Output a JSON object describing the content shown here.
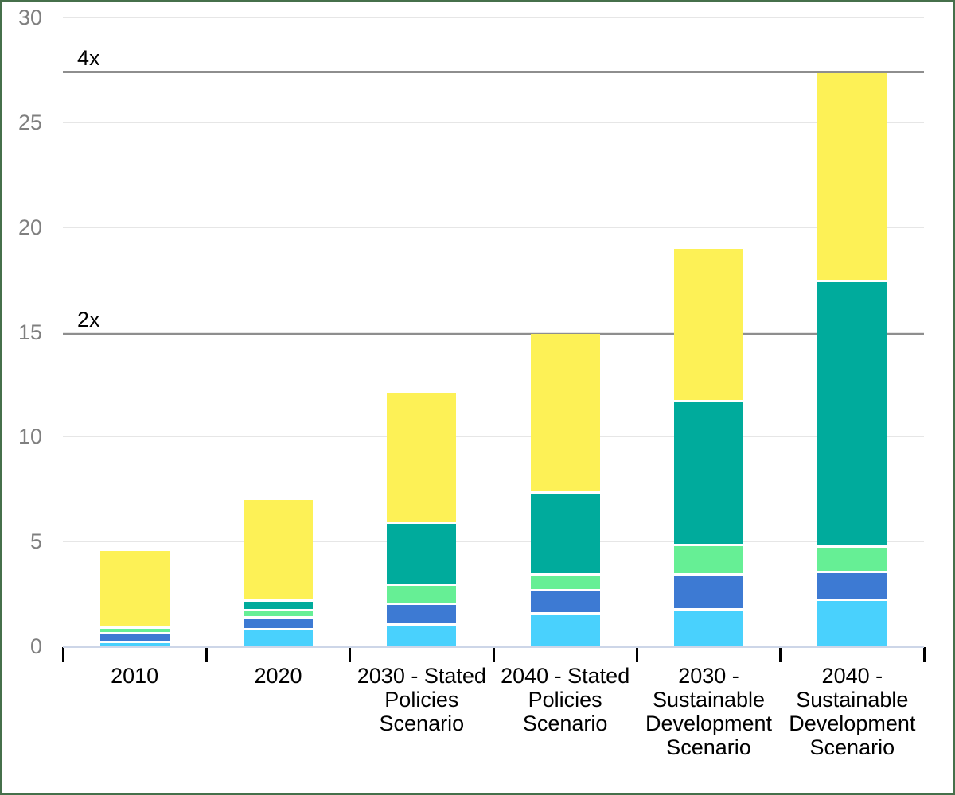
{
  "frame": {
    "border_color": "#46704b",
    "background": "#ffffff"
  },
  "y_axis": {
    "tick_labels": [
      "0",
      "5",
      "10",
      "15",
      "20",
      "25",
      "30"
    ],
    "tick_values": [
      0,
      5,
      10,
      15,
      20,
      25,
      30
    ],
    "label_color": "#7f7f7f",
    "gridline_color": "#e6e6e6",
    "baseline_color": "#cdd6e8"
  },
  "reference_lines": [
    {
      "label": "2x",
      "value": 14.9,
      "color": "#8e8e8e"
    },
    {
      "label": "4x",
      "value": 27.4,
      "color": "#8e8e8e"
    }
  ],
  "chart_data": {
    "type": "bar",
    "stacked": true,
    "grid": true,
    "legend_position": "none",
    "title": "",
    "xlabel": "",
    "ylabel": "",
    "ylim": [
      0,
      30
    ],
    "categories": [
      "2010",
      "2020",
      "2030 - Stated\nPolicies\nScenario",
      "2040 - Stated\nPolicies\nScenario",
      "2030 -\nSustainable\nDevelopment\nScenario",
      "2040 -\nSustainable\nDevelopment\nScenario"
    ],
    "series": [
      {
        "name": "segment-cyan",
        "color": "#49d1fd",
        "values": [
          0.17,
          0.75,
          0.97,
          1.52,
          1.71,
          2.18
        ]
      },
      {
        "name": "segment-blue",
        "color": "#3d7ad3",
        "values": [
          0.39,
          0.56,
          0.99,
          1.1,
          1.65,
          1.3
        ]
      },
      {
        "name": "segment-green",
        "color": "#66ef95",
        "values": [
          0.28,
          0.34,
          0.93,
          0.74,
          1.4,
          1.22
        ]
      },
      {
        "name": "segment-teal",
        "color": "#00ab9c",
        "values": [
          0.0,
          0.48,
          2.96,
          3.93,
          6.87,
          12.66
        ]
      },
      {
        "name": "segment-yellow",
        "color": "#fdf156",
        "values": [
          3.73,
          4.86,
          6.23,
          7.61,
          7.33,
          9.99
        ]
      }
    ],
    "totals": [
      4.57,
      6.99,
      12.08,
      14.9,
      18.96,
      27.35
    ],
    "annotations": [
      "2x",
      "4x"
    ]
  }
}
